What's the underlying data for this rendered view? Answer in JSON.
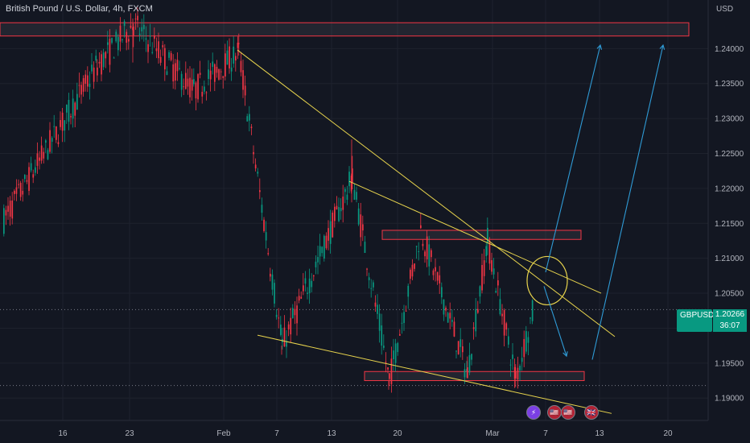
{
  "header": {
    "symbol_title": "British Pound / U.S. Dollar, 4h, FXCM",
    "currency": "USD"
  },
  "price_badge": {
    "symbol": "GBPUSD",
    "price": "1.20266",
    "countdown": "36:07"
  },
  "events": [
    {
      "name": "lightning-icon",
      "glyph": "⚡",
      "color": "#7b3fe4"
    },
    {
      "name": "us-flag-icon",
      "glyph": "🇺🇸",
      "color": "#b22234"
    },
    {
      "name": "us-flag-icon",
      "glyph": "🇺🇸",
      "color": "#b22234"
    },
    {
      "name": "uk-flag-icon",
      "glyph": "🇬🇧",
      "color": "#b22234"
    }
  ],
  "chart_data": {
    "type": "candlestick",
    "symbol": "GBPUSD",
    "timeframe": "4h",
    "source": "FXCM",
    "y_axis": {
      "ticks": [
        "1.24000",
        "1.23500",
        "1.23000",
        "1.22500",
        "1.22000",
        "1.21500",
        "1.21000",
        "1.20500",
        "1.20000",
        "1.19500",
        "1.19000"
      ],
      "range": [
        1.1868,
        1.2443
      ]
    },
    "x_axis": {
      "ticks": [
        "16",
        "23",
        "Feb",
        "7",
        "13",
        "20",
        "Mar",
        "7",
        "13",
        "20"
      ]
    },
    "current_price": 1.20266,
    "colors": {
      "up": "#089981",
      "down": "#f23645",
      "zones": "#f23645",
      "trendlines": "#e8d44d",
      "arrows": "#2f9bd6",
      "grid": "#1e222d"
    },
    "anchors": {
      "start": {
        "label": "16",
        "price": 1.2155
      },
      "mid1": {
        "label": "23",
        "price": 1.2375
      },
      "peak": {
        "label": "23",
        "price": 1.2435
      },
      "mid2": {
        "label": "Feb",
        "price": 1.234
      },
      "feb_high": {
        "label": "Feb",
        "price": 1.2395
      },
      "low1": {
        "label": "7",
        "price": 1.1975
      },
      "high1": {
        "label": "13",
        "price": 1.2215
      },
      "low2": {
        "label": "20",
        "price": 1.1925
      },
      "high2": {
        "label": "20",
        "price": 1.214
      },
      "low3": {
        "label": "Mar",
        "price": 1.1935
      },
      "high3": {
        "label": "Mar",
        "price": 1.2125
      },
      "low4": {
        "label": "7",
        "price": 1.1928
      },
      "end": {
        "label": "7",
        "price": 1.2027
      }
    },
    "zones": [
      {
        "name": "top-resistance-zone",
        "price_top": 1.2437,
        "price_bottom": 1.2418
      },
      {
        "name": "mid-resistance-zone",
        "price_top": 1.214,
        "price_bottom": 1.2127
      },
      {
        "name": "support-zone",
        "price_top": 1.1938,
        "price_bottom": 1.1925
      }
    ],
    "dotted_lines": [
      {
        "name": "current-price-line",
        "price": 1.20266
      },
      {
        "name": "low-dotted-line",
        "price": 1.1918
      }
    ],
    "trendlines": [
      {
        "name": "upper-trendline",
        "from": {
          "label": "Feb",
          "price": 1.2398
        },
        "to": {
          "label": "13",
          "price": 1.1988
        }
      },
      {
        "name": "inner-trendline",
        "from": {
          "label": "13",
          "price": 1.221
        },
        "to": {
          "label": "7",
          "price": 1.205
        }
      },
      {
        "name": "lower-trendline",
        "from": {
          "label": "7",
          "price": 1.199
        },
        "to": {
          "label": "13",
          "price": 1.1878
        }
      }
    ],
    "arrows": [
      {
        "name": "projection-up-arrow-1",
        "from": {
          "label": "7",
          "price": 1.208
        },
        "to": {
          "label": "7",
          "price": 1.2405
        }
      },
      {
        "name": "projection-down-arrow",
        "from": {
          "label": "7",
          "price": 1.206
        },
        "to": {
          "label": "7",
          "price": 1.196
        }
      },
      {
        "name": "projection-up-arrow-2",
        "from": {
          "label": "13",
          "price": 1.1955
        },
        "to": {
          "label": "20",
          "price": 1.2405
        }
      }
    ],
    "circle": {
      "name": "breakout-circle",
      "center": {
        "label": "7",
        "price": 1.2068
      }
    }
  }
}
